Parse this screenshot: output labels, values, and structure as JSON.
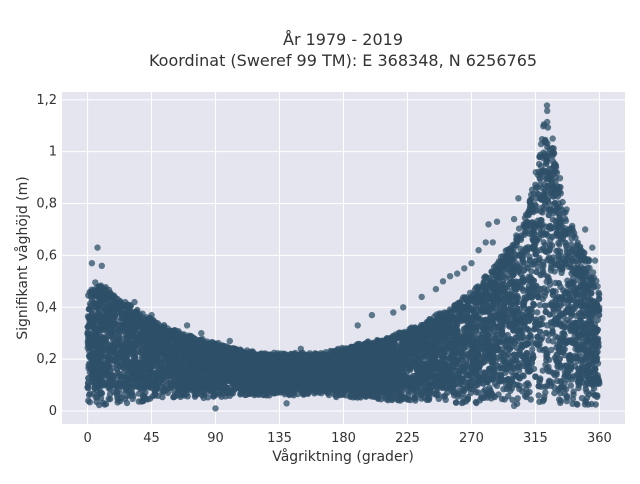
{
  "chart_data": {
    "type": "scatter",
    "title": "År 1979 - 2019",
    "subtitle": "Koordinat (Sweref 99 TM): E 368348, N 6256765",
    "xlabel": "Vågriktning (grader)",
    "ylabel": "Signifikant våghöjd (m)",
    "xlim": [
      -18,
      378
    ],
    "ylim": [
      -0.05,
      1.23
    ],
    "x_ticks": [
      0,
      45,
      90,
      135,
      180,
      225,
      270,
      315,
      360
    ],
    "x_tick_labels": [
      "0",
      "45",
      "90",
      "135",
      "180",
      "225",
      "270",
      "315",
      "360"
    ],
    "y_ticks": [
      0,
      0.2,
      0.4,
      0.6,
      0.8,
      1.0,
      1.2
    ],
    "y_tick_labels": [
      "0",
      "0,2",
      "0,4",
      "0,6",
      "0,8",
      "1",
      "1,2"
    ],
    "grid": true,
    "marker_color": "#2e5068",
    "background_color": "#e5e5f0",
    "envelope": {
      "x": [
        0,
        5,
        10,
        20,
        30,
        45,
        60,
        75,
        90,
        105,
        120,
        135,
        150,
        165,
        180,
        195,
        210,
        225,
        240,
        255,
        270,
        285,
        300,
        310,
        315,
        320,
        323,
        325,
        330,
        335,
        340,
        345,
        350,
        355,
        360
      ],
      "y_max": [
        0.45,
        0.5,
        0.48,
        0.44,
        0.4,
        0.35,
        0.31,
        0.28,
        0.26,
        0.24,
        0.22,
        0.22,
        0.22,
        0.22,
        0.24,
        0.26,
        0.28,
        0.31,
        0.35,
        0.4,
        0.45,
        0.55,
        0.65,
        0.78,
        0.92,
        1.08,
        1.18,
        1.1,
        0.95,
        0.8,
        0.72,
        0.65,
        0.6,
        0.55,
        0.45
      ],
      "y_min": [
        0.02,
        0.02,
        0.02,
        0.03,
        0.03,
        0.04,
        0.05,
        0.05,
        0.05,
        0.06,
        0.06,
        0.06,
        0.06,
        0.06,
        0.05,
        0.05,
        0.04,
        0.04,
        0.04,
        0.03,
        0.03,
        0.03,
        0.03,
        0.02,
        0.02,
        0.02,
        0.02,
        0.02,
        0.02,
        0.02,
        0.02,
        0.02,
        0.02,
        0.02,
        0.02
      ]
    },
    "outliers": [
      {
        "x": 7,
        "y": 0.63
      },
      {
        "x": 3,
        "y": 0.57
      },
      {
        "x": 10,
        "y": 0.56
      },
      {
        "x": 33,
        "y": 0.42
      },
      {
        "x": 45,
        "y": 0.37
      },
      {
        "x": 70,
        "y": 0.33
      },
      {
        "x": 80,
        "y": 0.3
      },
      {
        "x": 100,
        "y": 0.27
      },
      {
        "x": 150,
        "y": 0.24
      },
      {
        "x": 190,
        "y": 0.33
      },
      {
        "x": 200,
        "y": 0.37
      },
      {
        "x": 215,
        "y": 0.38
      },
      {
        "x": 222,
        "y": 0.4
      },
      {
        "x": 235,
        "y": 0.44
      },
      {
        "x": 245,
        "y": 0.47
      },
      {
        "x": 250,
        "y": 0.5
      },
      {
        "x": 255,
        "y": 0.52
      },
      {
        "x": 260,
        "y": 0.53
      },
      {
        "x": 265,
        "y": 0.55
      },
      {
        "x": 270,
        "y": 0.57
      },
      {
        "x": 275,
        "y": 0.62
      },
      {
        "x": 280,
        "y": 0.65
      },
      {
        "x": 282,
        "y": 0.72
      },
      {
        "x": 285,
        "y": 0.65
      },
      {
        "x": 288,
        "y": 0.73
      },
      {
        "x": 300,
        "y": 0.74
      },
      {
        "x": 303,
        "y": 0.82
      },
      {
        "x": 350,
        "y": 0.7
      },
      {
        "x": 355,
        "y": 0.63
      },
      {
        "x": 357,
        "y": 0.58
      },
      {
        "x": 90,
        "y": 0.01
      },
      {
        "x": 140,
        "y": 0.03
      },
      {
        "x": 300,
        "y": 0.02
      }
    ]
  }
}
